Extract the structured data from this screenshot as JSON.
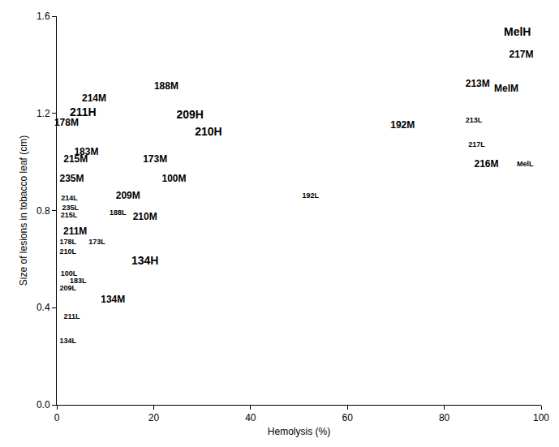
{
  "chart_data": {
    "type": "scatter",
    "marker": "text",
    "x_label": "Hemolysis (%)",
    "y_label": "Size of lesions in tobacco leaf (cm)",
    "labels": [
      "MelH",
      "217M",
      "213M",
      "MelM",
      "188M",
      "214M",
      "211H",
      "178M",
      "209H",
      "210H",
      "192M",
      "213L",
      "217L",
      "216M",
      "MelL",
      "183M",
      "215M",
      "173M",
      "235M",
      "100M",
      "209M",
      "214L",
      "192L",
      "235L",
      "188L",
      "210M",
      "215L",
      "211M",
      "178L",
      "173L",
      "210L",
      "134H",
      "100L",
      "183L",
      "209L",
      "134M",
      "211L",
      "134L"
    ],
    "x": [
      95.1,
      95.9,
      86.9,
      92.8,
      22.6,
      7.7,
      5.4,
      2.0,
      27.5,
      31.3,
      71.4,
      86.1,
      86.7,
      88.7,
      96.7,
      6.1,
      3.9,
      20.3,
      3.1,
      24.2,
      14.7,
      2.6,
      52.4,
      2.8,
      12.6,
      18.2,
      2.5,
      3.8,
      2.3,
      8.3,
      2.3,
      18.2,
      2.5,
      4.4,
      2.3,
      11.6,
      3.1,
      2.3
    ],
    "y": [
      1.53,
      1.44,
      1.32,
      1.3,
      1.31,
      1.26,
      1.2,
      1.16,
      1.19,
      1.12,
      1.15,
      1.17,
      1.07,
      0.99,
      0.99,
      1.04,
      1.01,
      1.01,
      0.93,
      0.93,
      0.86,
      0.85,
      0.86,
      0.81,
      0.79,
      0.77,
      0.78,
      0.71,
      0.67,
      0.67,
      0.63,
      0.59,
      0.54,
      0.51,
      0.48,
      0.43,
      0.36,
      0.26
    ],
    "xlim": [
      0,
      100
    ],
    "xticks": [
      0,
      20,
      40,
      60,
      80,
      100
    ],
    "ylim": [
      0,
      1.6
    ],
    "yticks": [
      {
        "value": 0,
        "label": "0.0"
      },
      0.4,
      0.8,
      1.2,
      1.6
    ],
    "grid": false,
    "color": "#000000"
  }
}
